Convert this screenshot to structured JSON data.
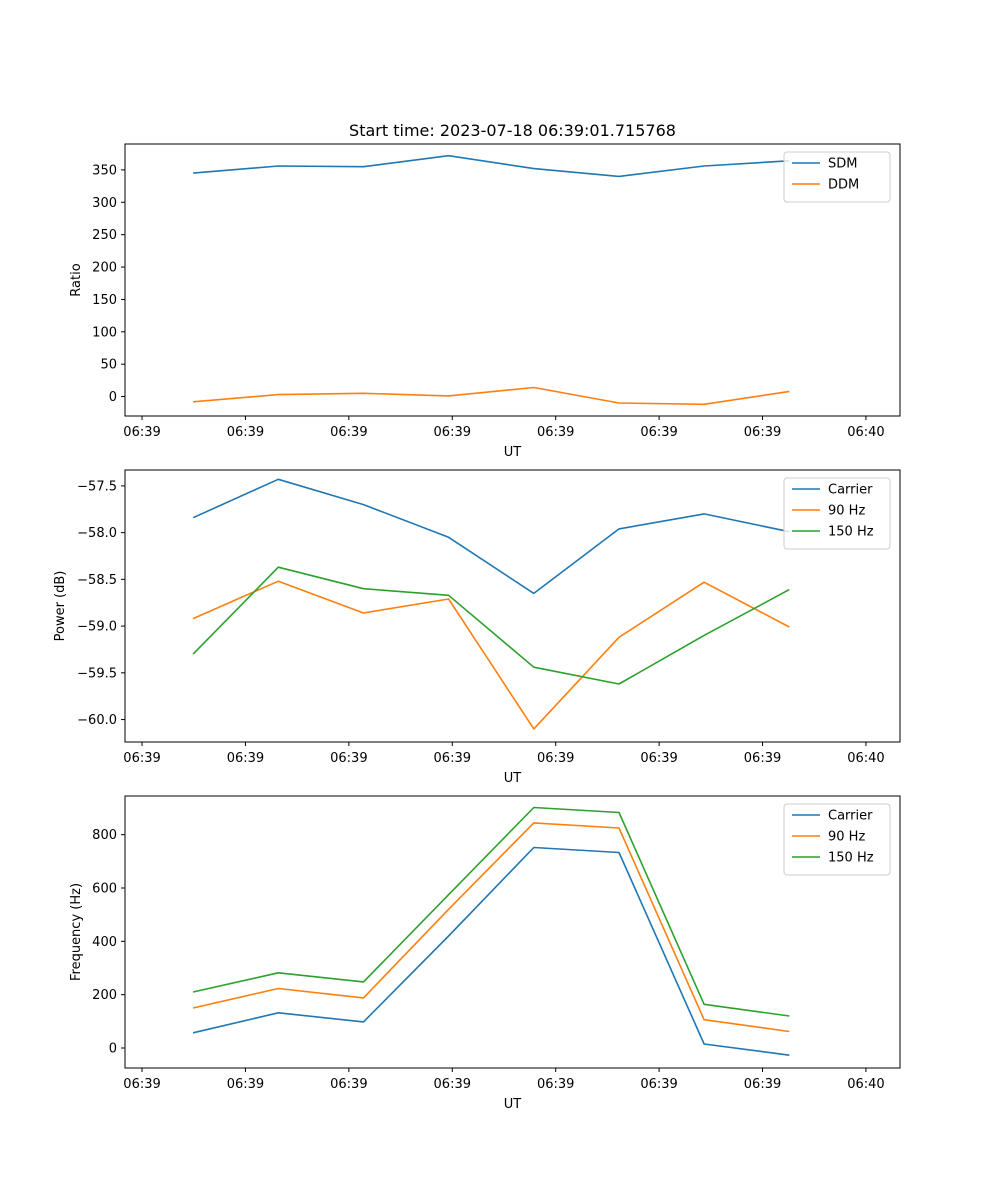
{
  "chart_data": [
    {
      "type": "line",
      "title": "Start time: 2023-07-18 06:39:01.715768",
      "xlabel": "UT",
      "ylabel": "Ratio",
      "x_tick_labels": [
        "06:39",
        "06:39",
        "06:39",
        "06:39",
        "06:39",
        "06:39",
        "06:39",
        "06:40"
      ],
      "x": [
        1,
        2,
        3,
        4,
        5,
        6,
        7,
        8
      ],
      "xlim": [
        0.2,
        9.3
      ],
      "y_ticks": [
        0,
        50,
        100,
        150,
        200,
        250,
        300,
        350
      ],
      "ylim": [
        -30,
        390
      ],
      "legend_position": "upper right",
      "series": [
        {
          "name": "SDM",
          "color": "#1f77b4",
          "values": [
            345,
            356,
            355,
            372,
            352,
            340,
            356,
            364
          ]
        },
        {
          "name": "DDM",
          "color": "#ff7f0e",
          "values": [
            -8,
            3,
            5,
            1,
            14,
            -10,
            -12,
            8
          ]
        }
      ]
    },
    {
      "type": "line",
      "title": "",
      "xlabel": "UT",
      "ylabel": "Power (dB)",
      "x_tick_labels": [
        "06:39",
        "06:39",
        "06:39",
        "06:39",
        "06:39",
        "06:39",
        "06:39",
        "06:40"
      ],
      "x": [
        1,
        2,
        3,
        4,
        5,
        6,
        7,
        8
      ],
      "xlim": [
        0.2,
        9.3
      ],
      "y_ticks": [
        -57.5,
        -58.0,
        -58.5,
        -59.0,
        -59.5,
        -60.0
      ],
      "y_tick_labels": [
        "−57.5",
        "−58.0",
        "−58.5",
        "−59.0",
        "−59.5",
        "−60.0"
      ],
      "ylim": [
        -60.24,
        -57.33
      ],
      "legend_position": "upper right",
      "series": [
        {
          "name": "Carrier",
          "color": "#1f77b4",
          "values": [
            -57.84,
            -57.43,
            -57.7,
            -58.05,
            -58.65,
            -57.96,
            -57.8,
            -57.99
          ]
        },
        {
          "name": "90 Hz",
          "color": "#ff7f0e",
          "values": [
            -58.92,
            -58.52,
            -58.86,
            -58.71,
            -60.1,
            -59.12,
            -58.53,
            -59.01
          ]
        },
        {
          "name": "150 Hz",
          "color": "#2ca02c",
          "values": [
            -59.3,
            -58.37,
            -58.6,
            -58.67,
            -59.44,
            -59.62,
            -59.1,
            -58.61
          ]
        }
      ]
    },
    {
      "type": "line",
      "title": "",
      "xlabel": "UT",
      "ylabel": "Frequency (Hz)",
      "x_tick_labels": [
        "06:39",
        "06:39",
        "06:39",
        "06:39",
        "06:39",
        "06:39",
        "06:39",
        "06:40"
      ],
      "x": [
        1,
        2,
        3,
        4,
        5,
        6,
        7,
        8
      ],
      "xlim": [
        0.2,
        9.3
      ],
      "y_ticks": [
        0,
        200,
        400,
        600,
        800
      ],
      "ylim": [
        -75,
        945
      ],
      "legend_position": "upper right",
      "series": [
        {
          "name": "Carrier",
          "color": "#1f77b4",
          "values": [
            57,
            132,
            98,
            420,
            752,
            733,
            15,
            -27
          ]
        },
        {
          "name": "90 Hz",
          "color": "#ff7f0e",
          "values": [
            150,
            223,
            188,
            520,
            844,
            825,
            106,
            62
          ]
        },
        {
          "name": "150 Hz",
          "color": "#2ca02c",
          "values": [
            210,
            282,
            248,
            575,
            902,
            883,
            164,
            120
          ]
        }
      ]
    }
  ]
}
